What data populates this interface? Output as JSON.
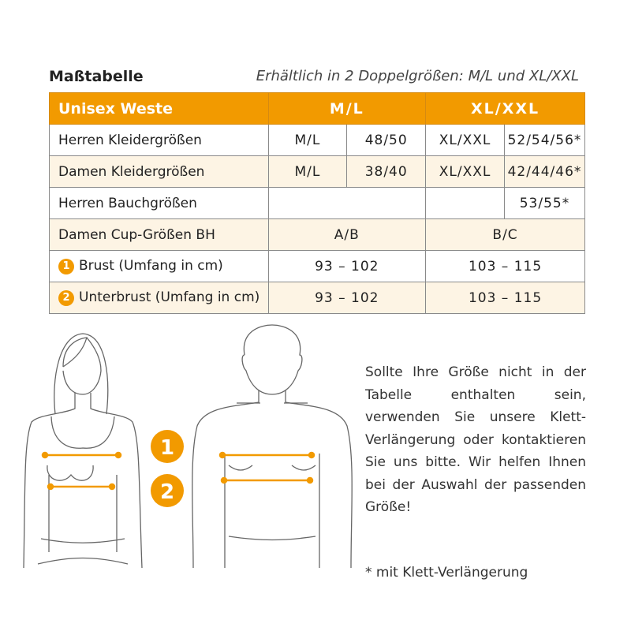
{
  "title": "Maßtabelle",
  "subtitle": "Erhältlich in 2 Doppelgrößen: M/L und XL/XXL",
  "table": {
    "header": [
      "Unisex Weste",
      "M/L",
      "XL/XXL"
    ],
    "rows": [
      {
        "label": "Herren Kleidergrößen",
        "c1": "M/L",
        "c2": "48/50",
        "c3": "XL/XXL",
        "c4": "52/54/56*"
      },
      {
        "label": "Damen Kleidergrößen",
        "c1": "M/L",
        "c2": "38/40",
        "c3": "XL/XXL",
        "c4": "42/44/46*"
      },
      {
        "label": "Herren Bauchgrößen",
        "c4": "53/55*"
      },
      {
        "label": "Damen Cup-Größen BH",
        "ml": "A/B",
        "xl": "B/C"
      },
      {
        "num": "1",
        "label": "Brust (Umfang in cm)",
        "ml": "93 – 102",
        "xl": "103 – 115"
      },
      {
        "num": "2",
        "label": "Unterbrust (Umfang in cm)",
        "ml": "93 – 102",
        "xl": "103 – 115"
      }
    ]
  },
  "markers": [
    "1",
    "2"
  ],
  "note": "Sollte Ihre Größe nicht in der Tabelle enthalten sein, verwenden Sie unsere Klett-Verlängerung oder kontaktieren Sie uns bitte. Wir helfen Ihnen bei der Auswahl der passenden Größe!",
  "footnote": "* mit Klett-Verlängerung",
  "colors": {
    "accent": "#f29a00",
    "cream": "#fdf4e4"
  }
}
